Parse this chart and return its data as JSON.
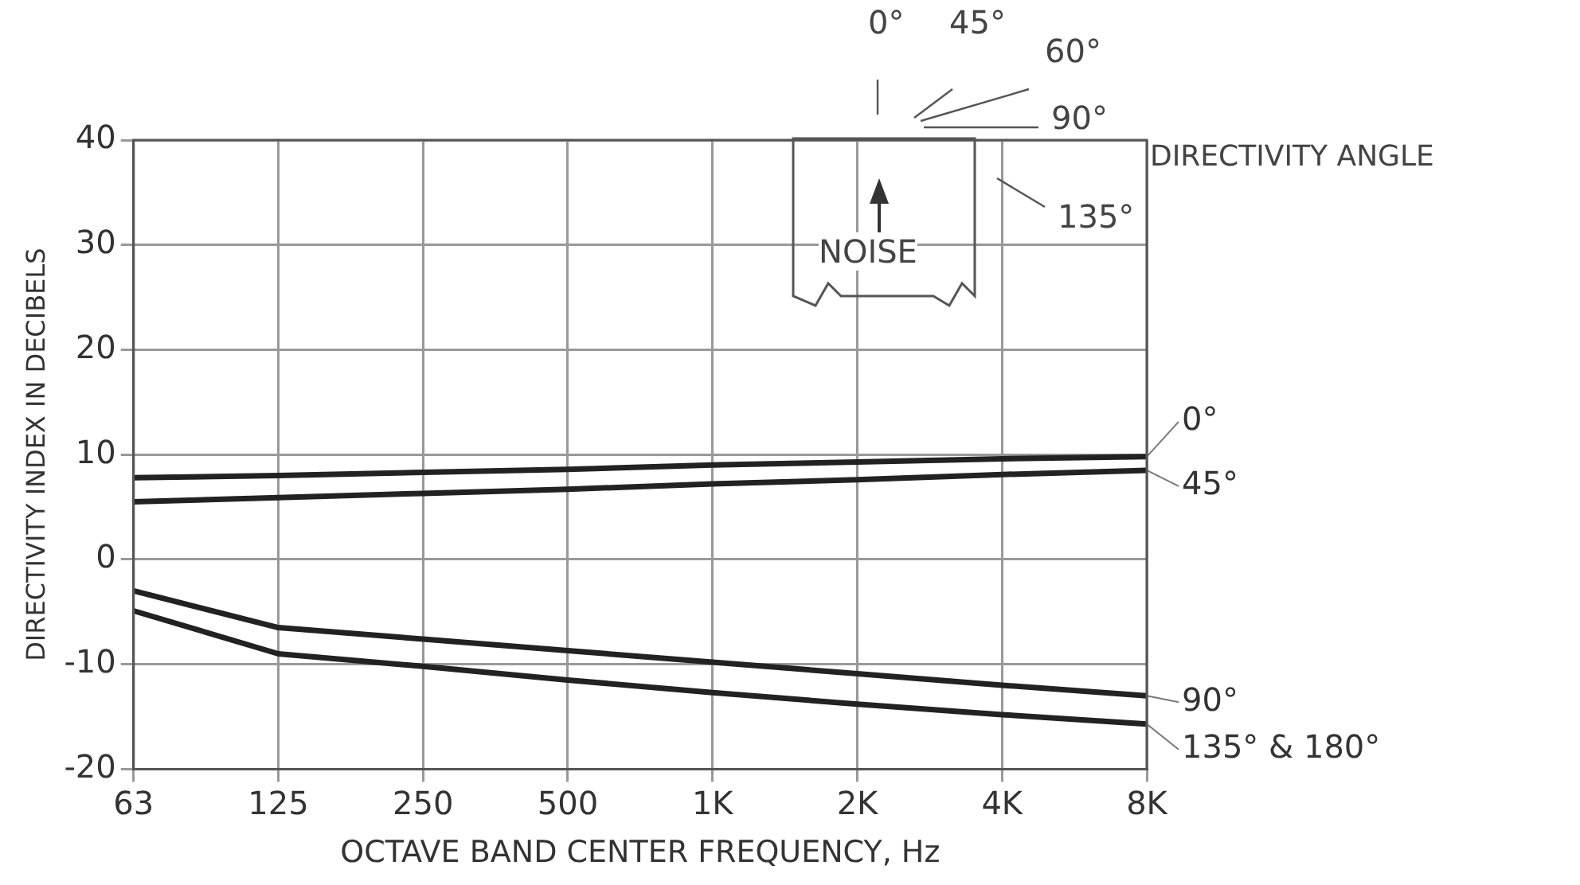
{
  "chart_data": {
    "type": "line",
    "xlabel": "OCTAVE BAND CENTER FREQUENCY, Hz",
    "ylabel": "DIRECTIVITY INDEX IN DECIBELS",
    "categories": [
      "63",
      "125",
      "250",
      "500",
      "1K",
      "2K",
      "4K",
      "8K"
    ],
    "series": [
      {
        "name": "0°",
        "color": "#222222",
        "values": [
          7.8,
          8,
          8.3,
          8.6,
          9,
          9.3,
          9.6,
          9.8
        ]
      },
      {
        "name": "45°",
        "color": "#222222",
        "values": [
          5.5,
          5.9,
          6.3,
          6.7,
          7.2,
          7.6,
          8.1,
          8.5
        ]
      },
      {
        "name": "90°",
        "color": "#222222",
        "values": [
          -3,
          -6.5,
          -7.6,
          -8.7,
          -9.8,
          -10.9,
          -12,
          -13
        ]
      },
      {
        "name": "135° & 180°",
        "color": "#222222",
        "values": [
          -4.9,
          -9,
          -10.2,
          -11.5,
          -12.7,
          -13.8,
          -14.8,
          -15.7
        ]
      }
    ],
    "ylim": [
      -20,
      40
    ],
    "yticks": [
      -20,
      -10,
      0,
      10,
      20,
      30,
      40
    ],
    "grid": true,
    "legend": false,
    "marker": "none",
    "line_style": "solid",
    "annotations": [
      "0°",
      "45°",
      "60°",
      "90°",
      "135°",
      "DIRECTIVITY ANGLE",
      "NOISE"
    ]
  }
}
